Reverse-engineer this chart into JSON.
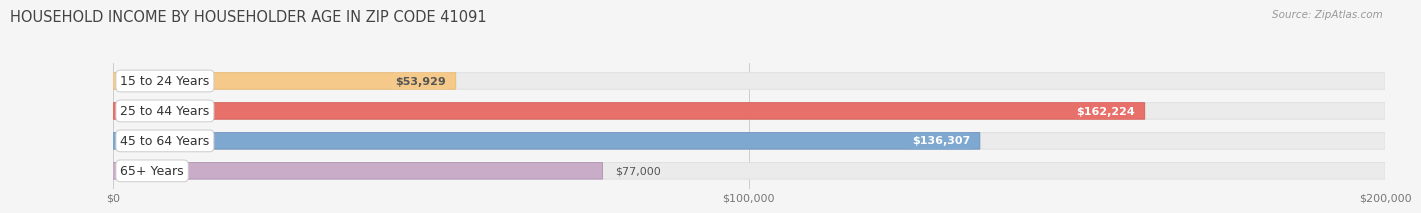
{
  "title": "HOUSEHOLD INCOME BY HOUSEHOLDER AGE IN ZIP CODE 41091",
  "source": "Source: ZipAtlas.com",
  "categories": [
    "15 to 24 Years",
    "25 to 44 Years",
    "45 to 64 Years",
    "65+ Years"
  ],
  "values": [
    53929,
    162224,
    136307,
    77000
  ],
  "bar_colors": [
    "#f5c98a",
    "#e8706a",
    "#7fa8d0",
    "#c9adc8"
  ],
  "bar_edge_colors": [
    "#e8b870",
    "#d45a54",
    "#6a90bc",
    "#b090b0"
  ],
  "value_label_text_colors": [
    "#555555",
    "#ffffff",
    "#ffffff",
    "#555555"
  ],
  "value_label_bg_colors": [
    "#f5c98a",
    "#e8706a",
    "#7fa8d0",
    "none"
  ],
  "value_labels": [
    "$53,929",
    "$162,224",
    "$136,307",
    "$77,000"
  ],
  "xlim": [
    0,
    200000
  ],
  "xtick_values": [
    0,
    100000,
    200000
  ],
  "xtick_labels": [
    "$0",
    "$100,000",
    "$200,000"
  ],
  "background_color": "#f5f5f5",
  "bar_bg_color": "#ebebeb",
  "bar_bg_edge_color": "#dddddd",
  "title_fontsize": 10.5,
  "source_fontsize": 7.5,
  "label_fontsize": 9,
  "value_fontsize": 8
}
